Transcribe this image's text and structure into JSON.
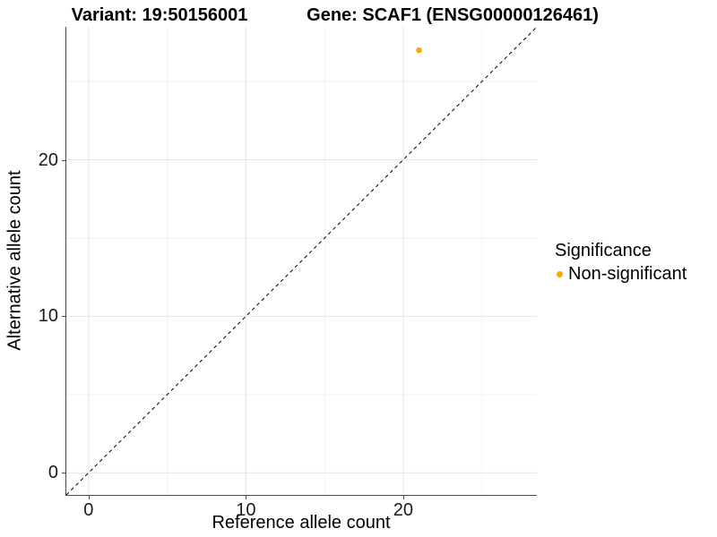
{
  "plot": {
    "title_left": "Variant: 19:50156001",
    "title_right": "Gene: SCAF1 (ENSG00000126461)"
  },
  "chart_data": {
    "type": "scatter",
    "title": "Variant: 19:50156001   Gene: SCAF1 (ENSG00000126461)",
    "title_left": "Variant: 19:50156001",
    "title_right": "Gene: SCAF1 (ENSG00000126461)",
    "xlabel": "Reference allele count",
    "ylabel": "Alternative allele count",
    "xlim": [
      -1.41,
      28.49
    ],
    "ylim": [
      -1.41,
      28.49
    ],
    "x_ticks": [
      0,
      10,
      20
    ],
    "y_ticks": [
      0,
      10,
      20
    ],
    "x_minor_ticks": [
      5,
      15,
      25
    ],
    "y_minor_ticks": [
      5,
      15,
      25
    ],
    "grid": true,
    "series": [
      {
        "name": "Non-significant",
        "color": "#FFA500",
        "points": [
          {
            "x": 21,
            "y": 27
          }
        ]
      }
    ],
    "reference_line": {
      "kind": "identity",
      "style": "dashed",
      "color": "#000000",
      "from": [
        -1.41,
        -1.41
      ],
      "to": [
        28.49,
        28.49
      ]
    },
    "legend": {
      "title": "Significance",
      "position": "right",
      "entries": [
        {
          "label": "Non-significant",
          "color": "#FFA500"
        }
      ]
    }
  },
  "colors": {
    "background": "#FFFFFF",
    "axis_line": "#4A4A4A",
    "grid_major": "#E4E4E4",
    "grid_minor": "#F2F2F2",
    "tick_text": "#1A1A1A",
    "point": "#FFA500"
  }
}
